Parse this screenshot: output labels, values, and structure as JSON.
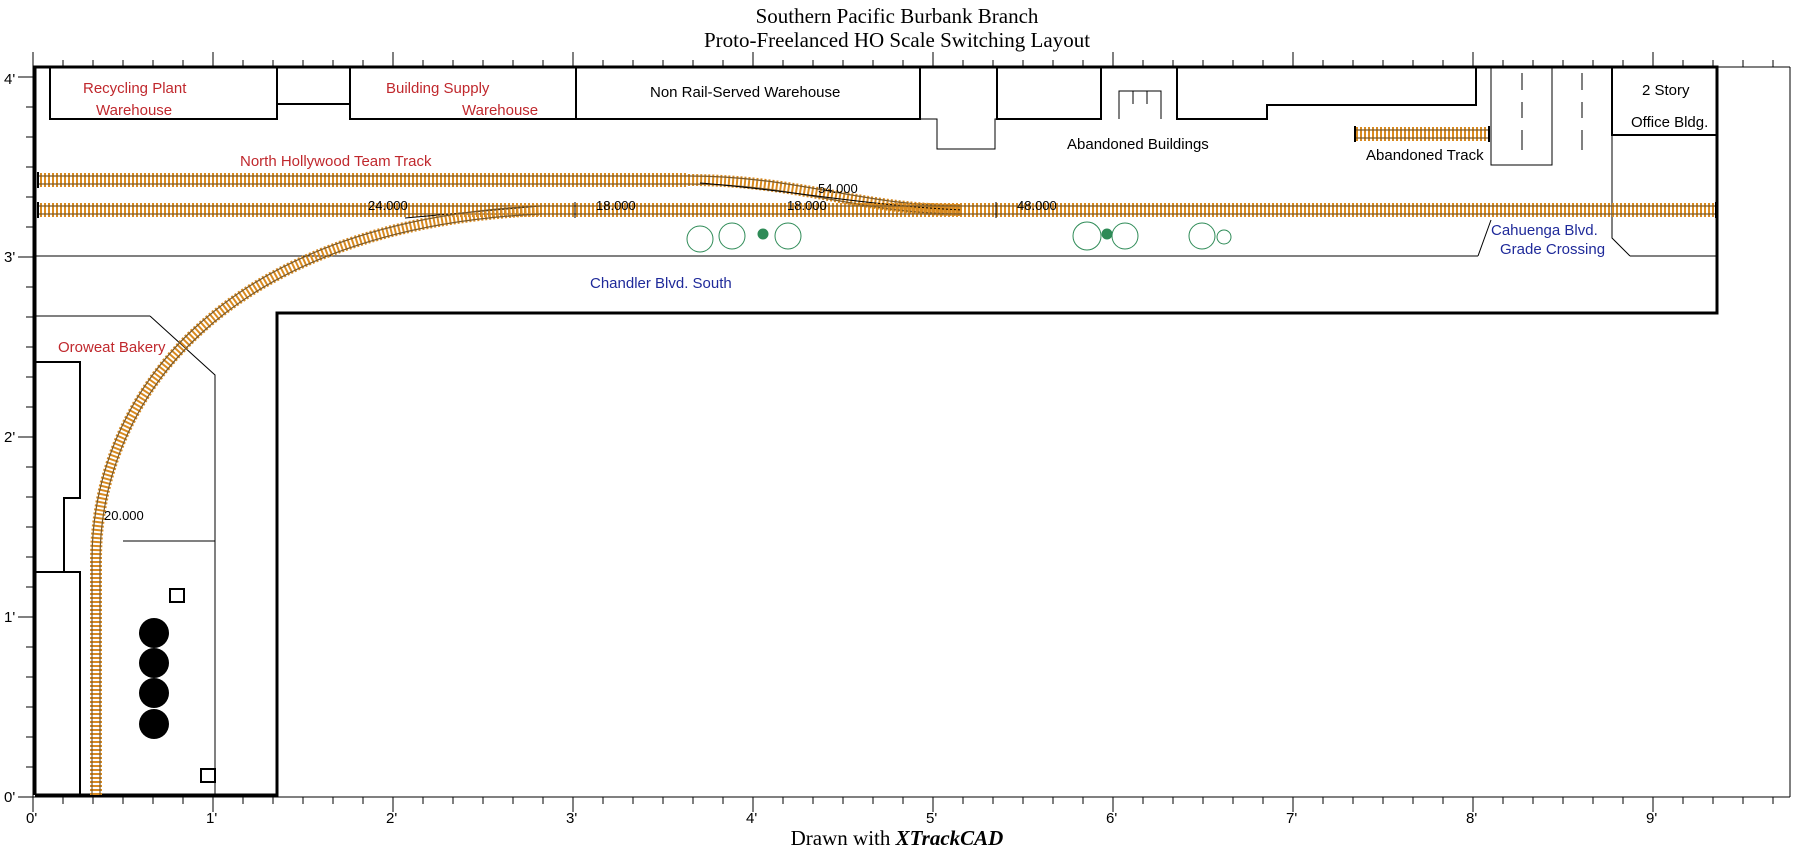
{
  "title": {
    "line1": "Southern Pacific Burbank Branch",
    "line2": "Proto-Freelanced HO Scale Switching Layout"
  },
  "footer": {
    "prefix": "Drawn with",
    "app": "XTrackCAD"
  },
  "axes": {
    "y_ticks": [
      "0'",
      "1'",
      "2'",
      "3'",
      "4'"
    ],
    "x_ticks": [
      "0'",
      "1'",
      "2'",
      "3'",
      "4'",
      "5'",
      "6'",
      "7'",
      "8'",
      "9'"
    ]
  },
  "labels": {
    "recycling_line1": "Recycling Plant",
    "recycling_line2": "Warehouse",
    "building_supply_line1": "Building Supply",
    "building_supply_line2": "Warehouse",
    "non_rail_warehouse": "Non Rail-Served Warehouse",
    "abandoned_buildings": "Abandoned Buildings",
    "abandoned_track": "Abandoned Track",
    "office_line1": "2 Story",
    "office_line2": "Office Bldg.",
    "team_track": "North Hollywood Team Track",
    "chandler": "Chandler Blvd. South",
    "cahuenga_line1": "Cahuenga Blvd.",
    "cahuenga_line2": "Grade Crossing",
    "oroweat": "Oroweat Bakery"
  },
  "track_dims": {
    "d1": "24.000",
    "d2": "18.000",
    "d3": "54.000",
    "d4": "18.000",
    "d5": "48.000",
    "d6": "20.000"
  },
  "colors": {
    "tie": "#d98a1f",
    "rail": "#7a5a2a",
    "red_label": "#c0282d",
    "blue_label": "#1f2a9a",
    "tree": "#2e8b57"
  }
}
